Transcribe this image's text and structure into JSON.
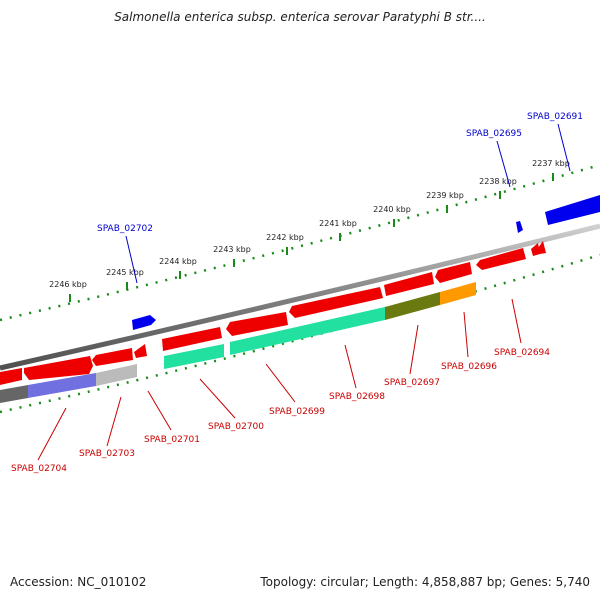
{
  "title": "Salmonella enterica subsp. enterica serovar Paratyphi B str....",
  "footer": {
    "accession": "Accession: NC_010102",
    "stats": "Topology: circular; Length: 4,858,887 bp; Genes: 5,740"
  },
  "ticks": [
    "2246 kbp",
    "2245 kbp",
    "2244 kbp",
    "2243 kbp",
    "2242 kbp",
    "2241 kbp",
    "2240 kbp",
    "2239 kbp",
    "2238 kbp",
    "2237 kbp"
  ],
  "genes_forward": [
    "SPAB_02702",
    "SPAB_02695",
    "SPAB_02691"
  ],
  "genes_reverse": [
    "SPAB_02704",
    "SPAB_02703",
    "SPAB_02701",
    "SPAB_02700",
    "SPAB_02699",
    "SPAB_02698",
    "SPAB_02697",
    "SPAB_02696",
    "SPAB_02694"
  ],
  "colors": {
    "forward_label": "#0000cc",
    "reverse_label": "#cc0000",
    "backbone": "#808080",
    "tick": "#1a8a1a",
    "gene_red": "#ee0000",
    "gene_blue": "#0000ee",
    "track_teal": "#22e0a0",
    "track_olive": "#6b7a10",
    "track_orange": "#ff9900",
    "track_gray": "#bbbbbb",
    "track_purple": "#7070e0"
  }
}
